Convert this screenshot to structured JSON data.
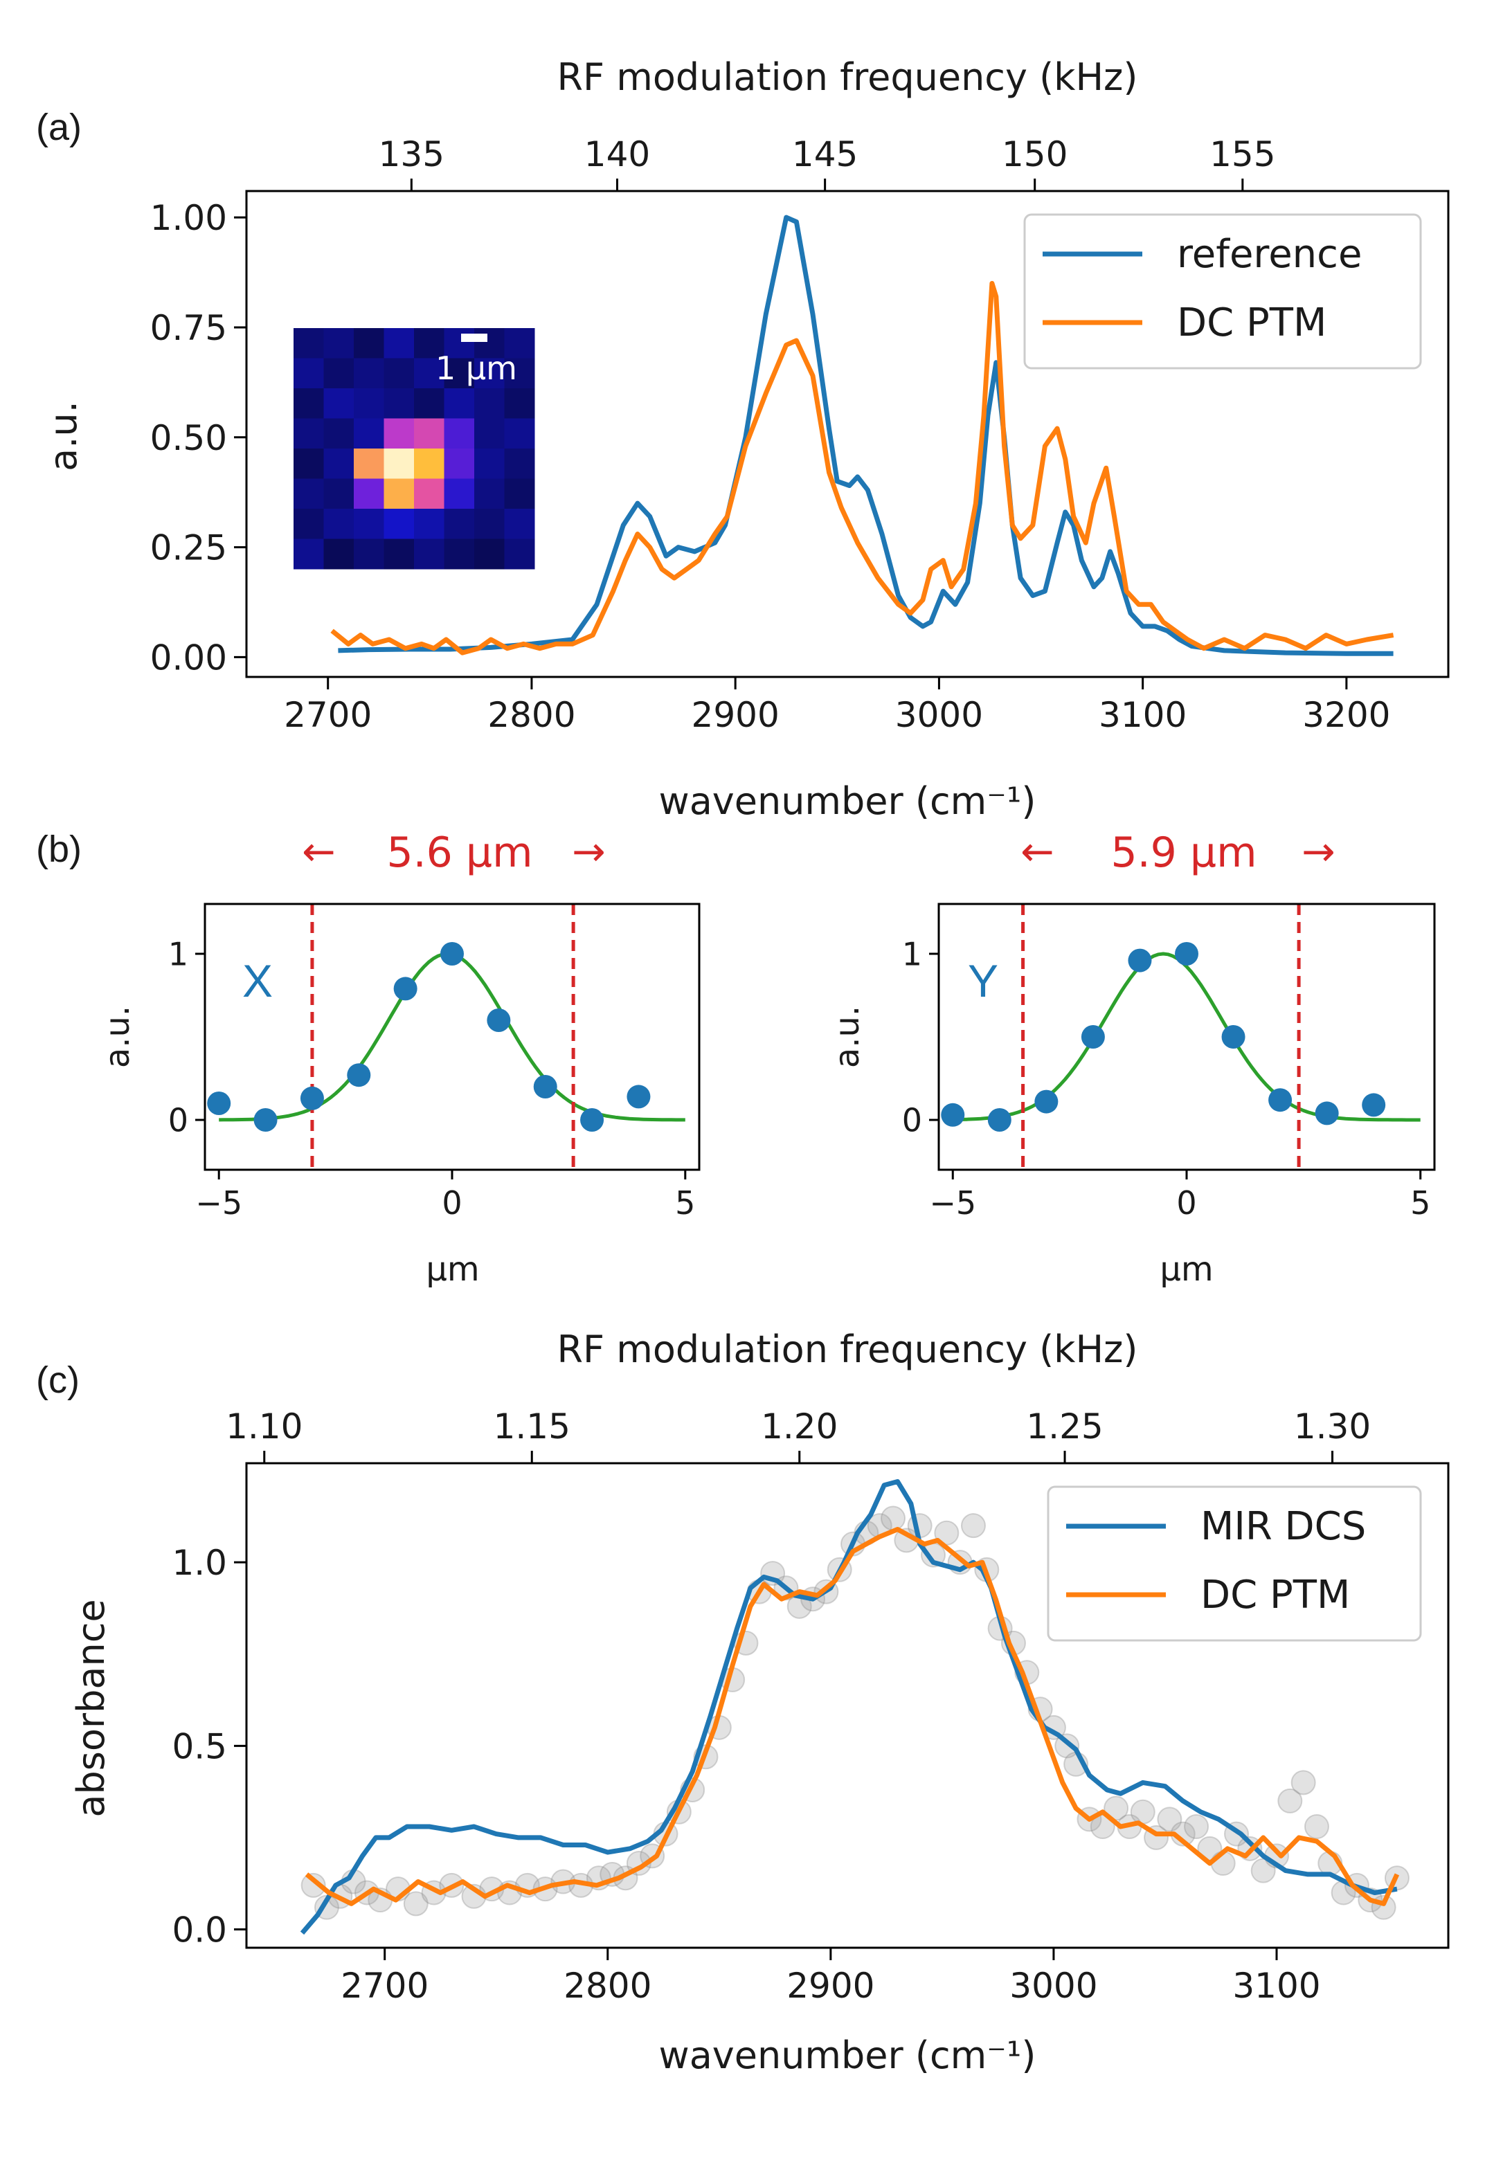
{
  "chart_data": [
    {
      "panel_label": "(a)",
      "type": "line",
      "xlabel": "wavenumber (cm⁻¹)",
      "ylabel": "a.u.",
      "top_xlabel": "RF modulation frequency (kHz)",
      "xlim": [
        2660,
        3250
      ],
      "ylim": [
        -0.045,
        1.06
      ],
      "xticks": [
        "2700",
        "2800",
        "2900",
        "3000",
        "3100",
        "3200"
      ],
      "yticks": [
        "0.00",
        "0.25",
        "0.50",
        "0.75",
        "1.00"
      ],
      "top_xticks": [
        "135",
        "140",
        "145",
        "150",
        "155"
      ],
      "top_tick_positions": [
        2741,
        2842,
        2944,
        3047,
        3149
      ],
      "legend": "top-right",
      "series": [
        {
          "name": "reference",
          "color": "#1f77b4",
          "x": [
            2705,
            2720,
            2740,
            2760,
            2780,
            2800,
            2820,
            2832,
            2845,
            2852,
            2858,
            2866,
            2872,
            2880,
            2890,
            2895,
            2905,
            2915,
            2925,
            2930,
            2938,
            2946,
            2950,
            2956,
            2960,
            2965,
            2972,
            2980,
            2986,
            2992,
            2996,
            3002,
            3008,
            3014,
            3020,
            3024,
            3028,
            3032,
            3036,
            3040,
            3046,
            3052,
            3058,
            3062,
            3066,
            3070,
            3076,
            3080,
            3084,
            3088,
            3094,
            3100,
            3106,
            3112,
            3118,
            3124,
            3140,
            3170,
            3200,
            3223
          ],
          "y": [
            0.015,
            0.017,
            0.018,
            0.018,
            0.022,
            0.03,
            0.04,
            0.12,
            0.3,
            0.35,
            0.32,
            0.23,
            0.25,
            0.24,
            0.26,
            0.3,
            0.5,
            0.78,
            1.0,
            0.99,
            0.78,
            0.52,
            0.4,
            0.39,
            0.41,
            0.38,
            0.28,
            0.14,
            0.09,
            0.07,
            0.08,
            0.15,
            0.12,
            0.17,
            0.35,
            0.55,
            0.67,
            0.5,
            0.3,
            0.18,
            0.14,
            0.15,
            0.26,
            0.33,
            0.3,
            0.22,
            0.16,
            0.18,
            0.24,
            0.19,
            0.1,
            0.07,
            0.07,
            0.06,
            0.04,
            0.025,
            0.015,
            0.01,
            0.008,
            0.008
          ]
        },
        {
          "name": "DC PTM",
          "color": "#ff7f0e",
          "x": [
            2702,
            2710,
            2716,
            2722,
            2730,
            2738,
            2746,
            2752,
            2758,
            2766,
            2774,
            2780,
            2788,
            2796,
            2804,
            2812,
            2820,
            2830,
            2840,
            2846,
            2852,
            2858,
            2864,
            2870,
            2876,
            2882,
            2890,
            2896,
            2905,
            2915,
            2925,
            2930,
            2938,
            2946,
            2952,
            2960,
            2970,
            2980,
            2986,
            2992,
            2996,
            3002,
            3006,
            3012,
            3018,
            3022,
            3026,
            3028,
            3032,
            3036,
            3040,
            3046,
            3052,
            3058,
            3062,
            3066,
            3072,
            3076,
            3082,
            3086,
            3092,
            3098,
            3104,
            3110,
            3116,
            3122,
            3130,
            3140,
            3150,
            3160,
            3170,
            3180,
            3190,
            3200,
            3210,
            3223
          ],
          "y": [
            0.06,
            0.03,
            0.05,
            0.03,
            0.04,
            0.02,
            0.03,
            0.02,
            0.04,
            0.01,
            0.02,
            0.04,
            0.02,
            0.03,
            0.02,
            0.03,
            0.03,
            0.05,
            0.15,
            0.22,
            0.28,
            0.25,
            0.2,
            0.18,
            0.2,
            0.22,
            0.28,
            0.32,
            0.48,
            0.6,
            0.71,
            0.72,
            0.64,
            0.42,
            0.34,
            0.26,
            0.18,
            0.12,
            0.1,
            0.13,
            0.2,
            0.22,
            0.16,
            0.2,
            0.35,
            0.55,
            0.85,
            0.82,
            0.48,
            0.3,
            0.27,
            0.3,
            0.48,
            0.52,
            0.45,
            0.32,
            0.26,
            0.35,
            0.43,
            0.32,
            0.15,
            0.12,
            0.12,
            0.08,
            0.06,
            0.04,
            0.02,
            0.04,
            0.02,
            0.05,
            0.04,
            0.02,
            0.05,
            0.03,
            0.04,
            0.05
          ]
        }
      ],
      "inset": {
        "scalebar_label": "1 μm",
        "heatmap_columns": 8,
        "heatmap_rows": 8
      }
    },
    {
      "panel_label": "(b)",
      "type": "scatter",
      "xlabel": "μm",
      "ylabel": "a.u.",
      "annotation": "X",
      "width_label": "5.6 μm",
      "xlim": [
        -5.3,
        5.3
      ],
      "ylim": [
        -0.3,
        1.3
      ],
      "xticks": [
        "−5",
        "0",
        "5"
      ],
      "yticks": [
        "0",
        "1"
      ],
      "fit_center": -0.1,
      "fit_sigma": 1.25,
      "dashed_lines_x": [
        -3.0,
        2.6
      ],
      "points": {
        "x": [
          -5,
          -4,
          -3,
          -2,
          -1,
          0,
          1,
          2,
          3,
          4
        ],
        "y": [
          0.1,
          0.0,
          0.13,
          0.27,
          0.79,
          1.0,
          0.6,
          0.2,
          0.0,
          0.14
        ]
      }
    },
    {
      "panel_label": "",
      "type": "scatter",
      "xlabel": "μm",
      "ylabel": "a.u.",
      "annotation": "Y",
      "width_label": "5.9 μm",
      "xlim": [
        -5.3,
        5.3
      ],
      "ylim": [
        -0.3,
        1.3
      ],
      "xticks": [
        "−5",
        "0",
        "5"
      ],
      "yticks": [
        "0",
        "1"
      ],
      "fit_center": -0.5,
      "fit_sigma": 1.25,
      "dashed_lines_x": [
        -3.5,
        2.4
      ],
      "points": {
        "x": [
          -5,
          -4,
          -3,
          -2,
          -1,
          0,
          1,
          2,
          3,
          4
        ],
        "y": [
          0.03,
          0.0,
          0.11,
          0.5,
          0.96,
          1.0,
          0.5,
          0.12,
          0.04,
          0.09
        ]
      }
    },
    {
      "panel_label": "(c)",
      "type": "line",
      "xlabel": "wavenumber (cm⁻¹)",
      "ylabel": "absorbance",
      "top_xlabel": "RF modulation frequency (kHz)",
      "xlim": [
        2638,
        3177
      ],
      "ylim": [
        -0.05,
        1.27
      ],
      "xticks": [
        "2700",
        "2800",
        "2900",
        "3000",
        "3100"
      ],
      "yticks": [
        "0.0",
        "0.5",
        "1.0"
      ],
      "top_xticks": [
        "1.10",
        "1.15",
        "1.20",
        "1.25",
        "1.30"
      ],
      "top_tick_positions": [
        2646,
        2766,
        2886,
        3005,
        3125
      ],
      "legend": "top-right",
      "series": [
        {
          "name": "MIR DCS",
          "color": "#1f77b4",
          "x": [
            2663,
            2670,
            2678,
            2684,
            2690,
            2696,
            2702,
            2710,
            2720,
            2730,
            2740,
            2750,
            2760,
            2770,
            2780,
            2790,
            2800,
            2810,
            2818,
            2824,
            2830,
            2838,
            2846,
            2852,
            2858,
            2864,
            2870,
            2876,
            2884,
            2892,
            2900,
            2906,
            2912,
            2918,
            2924,
            2930,
            2936,
            2940,
            2946,
            2952,
            2958,
            2964,
            2968,
            2972,
            2978,
            2984,
            2990,
            2996,
            3002,
            3010,
            3016,
            3024,
            3030,
            3040,
            3050,
            3058,
            3066,
            3074,
            3084,
            3094,
            3104,
            3114,
            3124,
            3134,
            3144,
            3154
          ],
          "y": [
            -0.01,
            0.04,
            0.12,
            0.14,
            0.2,
            0.25,
            0.25,
            0.28,
            0.28,
            0.27,
            0.28,
            0.26,
            0.25,
            0.25,
            0.23,
            0.23,
            0.21,
            0.22,
            0.24,
            0.27,
            0.33,
            0.43,
            0.58,
            0.7,
            0.82,
            0.93,
            0.96,
            0.95,
            0.91,
            0.9,
            0.93,
            1.0,
            1.08,
            1.13,
            1.21,
            1.22,
            1.16,
            1.05,
            1.0,
            0.99,
            0.98,
            1.0,
            0.98,
            0.93,
            0.8,
            0.7,
            0.6,
            0.55,
            0.53,
            0.49,
            0.42,
            0.38,
            0.37,
            0.4,
            0.39,
            0.35,
            0.32,
            0.3,
            0.26,
            0.2,
            0.16,
            0.15,
            0.15,
            0.12,
            0.1,
            0.11
          ]
        },
        {
          "name": "DC PTM",
          "color": "#ff7f0e",
          "x": [
            2665,
            2675,
            2685,
            2695,
            2705,
            2715,
            2725,
            2735,
            2745,
            2755,
            2765,
            2775,
            2785,
            2795,
            2805,
            2815,
            2822,
            2830,
            2840,
            2848,
            2856,
            2864,
            2870,
            2878,
            2886,
            2894,
            2902,
            2910,
            2916,
            2922,
            2930,
            2936,
            2942,
            2948,
            2956,
            2962,
            2968,
            2974,
            2980,
            2986,
            2992,
            2998,
            3004,
            3010,
            3016,
            3022,
            3030,
            3038,
            3046,
            3054,
            3062,
            3070,
            3078,
            3086,
            3094,
            3102,
            3110,
            3118,
            3126,
            3134,
            3142,
            3148,
            3154
          ],
          "y": [
            0.15,
            0.1,
            0.07,
            0.11,
            0.08,
            0.13,
            0.1,
            0.13,
            0.09,
            0.12,
            0.1,
            0.12,
            0.13,
            0.12,
            0.14,
            0.17,
            0.2,
            0.3,
            0.42,
            0.55,
            0.72,
            0.88,
            0.94,
            0.9,
            0.92,
            0.91,
            0.95,
            1.03,
            1.05,
            1.07,
            1.09,
            1.07,
            1.05,
            1.06,
            1.02,
            0.99,
            1.0,
            0.9,
            0.78,
            0.7,
            0.6,
            0.5,
            0.4,
            0.33,
            0.3,
            0.32,
            0.28,
            0.29,
            0.26,
            0.26,
            0.22,
            0.18,
            0.22,
            0.2,
            0.25,
            0.2,
            0.25,
            0.24,
            0.2,
            0.12,
            0.08,
            0.07,
            0.15
          ]
        }
      ],
      "gray_markers": {
        "x": [
          2668,
          2674,
          2680,
          2686,
          2692,
          2698,
          2706,
          2714,
          2722,
          2730,
          2740,
          2748,
          2756,
          2764,
          2772,
          2780,
          2788,
          2796,
          2802,
          2808,
          2814,
          2820,
          2826,
          2832,
          2838,
          2844,
          2850,
          2856,
          2862,
          2868,
          2874,
          2880,
          2886,
          2892,
          2898,
          2904,
          2910,
          2916,
          2922,
          2928,
          2934,
          2940,
          2946,
          2952,
          2958,
          2964,
          2970,
          2976,
          2982,
          2988,
          2994,
          3000,
          3006,
          3010,
          3016,
          3022,
          3028,
          3034,
          3040,
          3046,
          3052,
          3058,
          3064,
          3070,
          3076,
          3082,
          3088,
          3094,
          3100,
          3106,
          3112,
          3118,
          3124,
          3130,
          3136,
          3142,
          3148,
          3154
        ],
        "y": [
          0.12,
          0.06,
          0.09,
          0.13,
          0.1,
          0.08,
          0.11,
          0.07,
          0.1,
          0.12,
          0.09,
          0.11,
          0.1,
          0.12,
          0.11,
          0.13,
          0.12,
          0.14,
          0.15,
          0.14,
          0.18,
          0.2,
          0.26,
          0.32,
          0.38,
          0.47,
          0.55,
          0.68,
          0.78,
          0.92,
          0.97,
          0.93,
          0.88,
          0.9,
          0.92,
          0.98,
          1.05,
          1.08,
          1.1,
          1.12,
          1.06,
          1.1,
          1.02,
          1.08,
          1.0,
          1.1,
          0.98,
          0.82,
          0.78,
          0.7,
          0.6,
          0.55,
          0.5,
          0.45,
          0.3,
          0.28,
          0.33,
          0.28,
          0.32,
          0.25,
          0.3,
          0.26,
          0.28,
          0.22,
          0.18,
          0.26,
          0.22,
          0.16,
          0.2,
          0.35,
          0.4,
          0.28,
          0.18,
          0.1,
          0.12,
          0.08,
          0.06,
          0.14
        ]
      }
    }
  ]
}
